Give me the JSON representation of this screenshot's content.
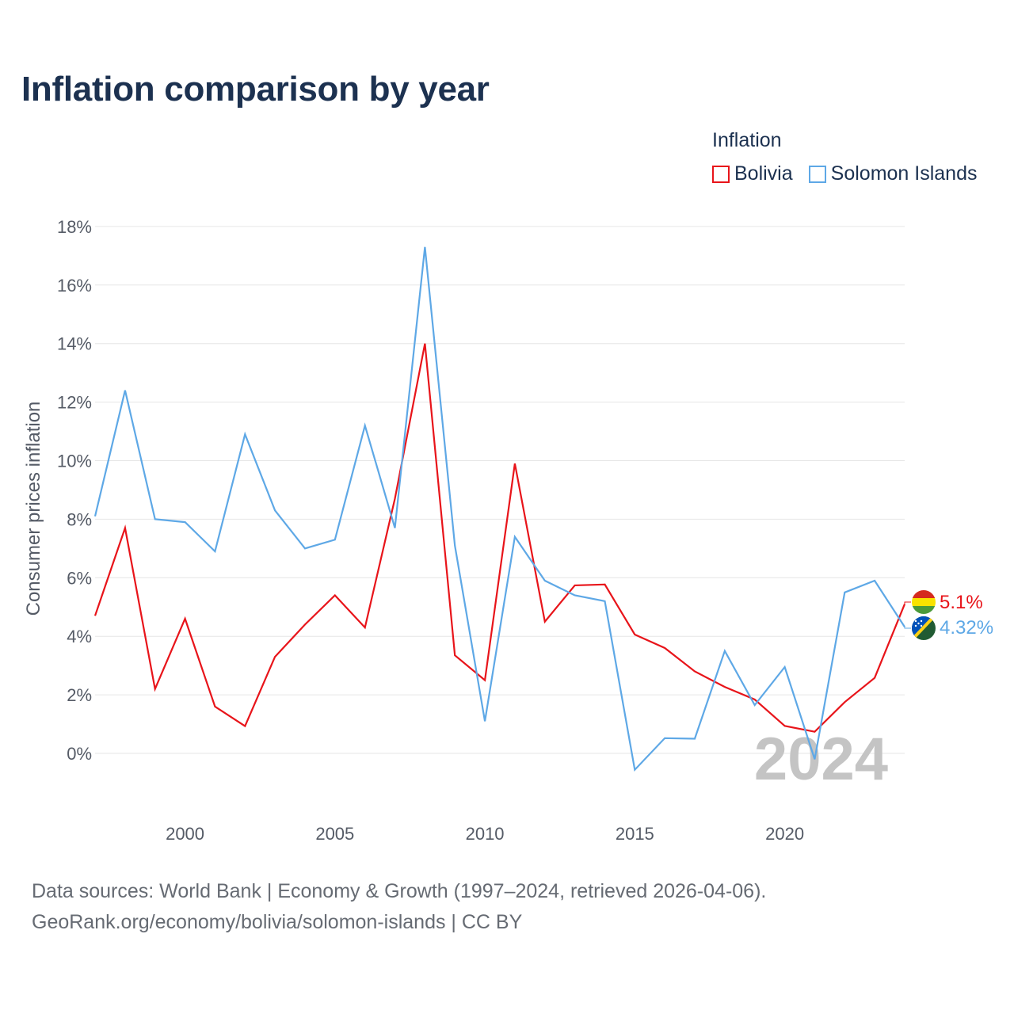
{
  "title": "Inflation comparison by year",
  "legend": {
    "title": "Inflation",
    "items": [
      {
        "label": "Bolivia",
        "color": "#e8141a"
      },
      {
        "label": "Solomon Islands",
        "color": "#5ea8e6"
      }
    ]
  },
  "footer": {
    "line1": "Data sources: World Bank | Economy & Growth (1997–2024, retrieved 2026-04-06).",
    "line2": "GeoRank.org/economy/bolivia/solomon-islands | CC BY"
  },
  "chart_data": {
    "type": "line",
    "ylabel": "Consumer prices inflation",
    "xlabel": "",
    "x": [
      1997,
      1998,
      1999,
      2000,
      2001,
      2002,
      2003,
      2004,
      2005,
      2006,
      2007,
      2008,
      2009,
      2010,
      2011,
      2012,
      2013,
      2014,
      2015,
      2016,
      2017,
      2018,
      2019,
      2020,
      2021,
      2022,
      2023,
      2024
    ],
    "xlim": [
      1997,
      2024
    ],
    "ylim": [
      -2,
      18
    ],
    "yticks": [
      0,
      2,
      4,
      6,
      8,
      10,
      12,
      14,
      16,
      18
    ],
    "ytick_labels": [
      "0%",
      "2%",
      "4%",
      "6%",
      "8%",
      "10%",
      "12%",
      "14%",
      "16%",
      "18%"
    ],
    "xticks": [
      2000,
      2005,
      2010,
      2015,
      2020
    ],
    "xtick_labels": [
      "2000",
      "2005",
      "2010",
      "2015",
      "2020"
    ],
    "grid": true,
    "year_watermark": "2024",
    "series": [
      {
        "name": "Bolivia",
        "color": "#e8141a",
        "end_label": "5.1%",
        "flag": "bolivia-flag-icon",
        "values": [
          4.7,
          7.7,
          2.2,
          4.6,
          1.6,
          0.93,
          3.3,
          4.4,
          5.4,
          4.3,
          8.7,
          14.0,
          3.35,
          2.5,
          9.9,
          4.5,
          5.74,
          5.77,
          4.06,
          3.6,
          2.8,
          2.27,
          1.84,
          0.94,
          0.74,
          1.75,
          2.58,
          5.1
        ]
      },
      {
        "name": "Solomon Islands",
        "color": "#5ea8e6",
        "end_label": "4.32%",
        "flag": "solomon-islands-flag-icon",
        "values": [
          8.1,
          12.4,
          8.0,
          7.9,
          6.9,
          10.9,
          8.3,
          7.0,
          7.3,
          11.2,
          7.7,
          17.3,
          7.1,
          1.1,
          7.4,
          5.9,
          5.4,
          5.2,
          -0.56,
          0.52,
          0.5,
          3.5,
          1.65,
          2.95,
          -0.2,
          5.5,
          5.9,
          4.32
        ]
      }
    ]
  }
}
